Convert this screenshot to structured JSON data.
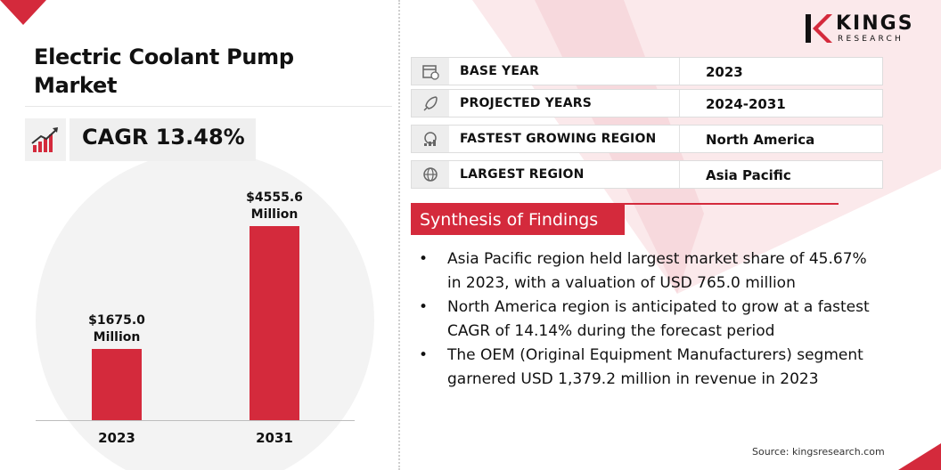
{
  "title_line1": "Electric Coolant Pump",
  "title_line2": "Market",
  "cagr_text": "CAGR 13.48%",
  "logo": {
    "brand": "KINGS",
    "sub": "RESEARCH"
  },
  "colors": {
    "accent": "#d42a3c",
    "text": "#111111",
    "panel": "#efefef"
  },
  "chart_data": {
    "type": "bar",
    "categories": [
      "2023",
      "2031"
    ],
    "values": [
      1675.0,
      4555.6
    ],
    "value_labels": [
      [
        "$1675.0",
        "Million"
      ],
      [
        "$4555.6",
        "Million"
      ]
    ],
    "title": "",
    "xlabel": "",
    "ylabel": "",
    "grid": false
  },
  "info_rows": [
    {
      "icon": "calendar-icon",
      "label": "BASE YEAR",
      "value": "2023"
    },
    {
      "icon": "rocket-icon",
      "label": "PROJECTED YEARS",
      "value": "2024-2031"
    },
    {
      "icon": "globe-growth-icon",
      "label": "FASTEST GROWING REGION",
      "value": "North America"
    },
    {
      "icon": "globe-icon",
      "label": "LARGEST REGION",
      "value": "Asia Pacific"
    }
  ],
  "findings_heading": "Synthesis of Findings",
  "findings": [
    {
      "line1": "Asia Pacific region held largest market share of 45.67%",
      "line2": "in 2023, with a valuation of USD 765.0 million"
    },
    {
      "line1": "North America region is anticipated to grow at a fastest",
      "line2": "CAGR of 14.14% during the forecast period"
    },
    {
      "line1": "The OEM (Original Equipment Manufacturers) segment",
      "line2": "garnered USD 1,379.2 million in revenue in 2023"
    }
  ],
  "bullet_char": "•",
  "source": "Source: kingsresearch.com"
}
